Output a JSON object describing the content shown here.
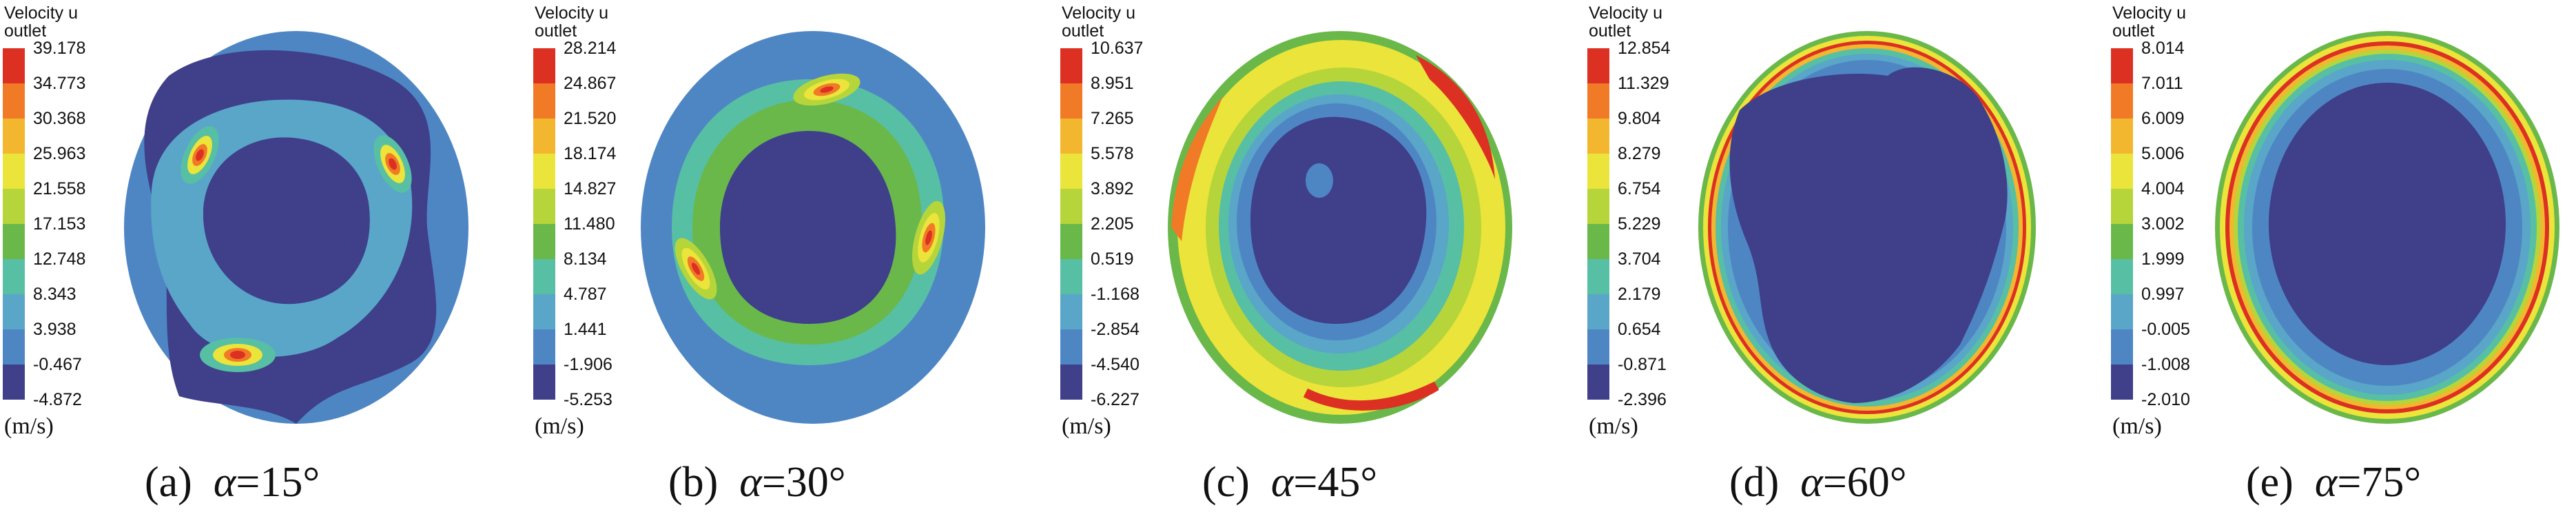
{
  "legend_title_line1": "Velocity u",
  "legend_title_line2": "outlet",
  "unit_label": "(m/s)",
  "colormap": [
    "#dc3023",
    "#f07a26",
    "#f2b72e",
    "#ebe43a",
    "#b6d53a",
    "#6ab84a",
    "#57bfa4",
    "#59a6c9",
    "#4e86c4",
    "#3f3f8a"
  ],
  "panels": [
    {
      "caption_prefix": "(a)",
      "alpha_symbol": "α",
      "alpha_value": "=15°",
      "ticks": [
        "39.178",
        "34.773",
        "30.368",
        "25.963",
        "21.558",
        "17.153",
        "12.748",
        "8.343",
        "3.938",
        "-0.467",
        "-4.872"
      ]
    },
    {
      "caption_prefix": "(b)",
      "alpha_symbol": "α",
      "alpha_value": "=30°",
      "ticks": [
        "28.214",
        "24.867",
        "21.520",
        "18.174",
        "14.827",
        "11.480",
        "8.134",
        "4.787",
        "1.441",
        "-1.906",
        "-5.253"
      ]
    },
    {
      "caption_prefix": "(c)",
      "alpha_symbol": "α",
      "alpha_value": "=45°",
      "ticks": [
        "10.637",
        "8.951",
        "7.265",
        "5.578",
        "3.892",
        "2.205",
        "0.519",
        "-1.168",
        "-2.854",
        "-4.540",
        "-6.227"
      ]
    },
    {
      "caption_prefix": "(d)",
      "alpha_symbol": "α",
      "alpha_value": "=60°",
      "ticks": [
        "12.854",
        "11.329",
        "9.804",
        "8.279",
        "6.754",
        "5.229",
        "3.704",
        "2.179",
        "0.654",
        "-0.871",
        "-2.396"
      ]
    },
    {
      "caption_prefix": "(e)",
      "alpha_symbol": "α",
      "alpha_value": "=75°",
      "ticks": [
        "8.014",
        "7.011",
        "6.009",
        "5.006",
        "4.004",
        "3.002",
        "1.999",
        "0.997",
        "-0.005",
        "-1.008",
        "-2.010"
      ]
    }
  ]
}
